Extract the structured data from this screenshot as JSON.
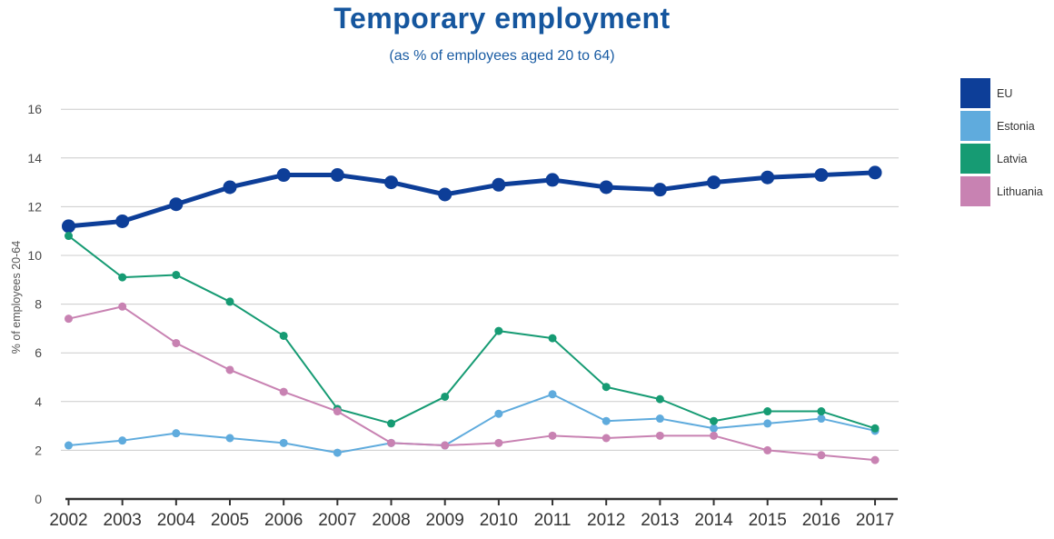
{
  "header": {
    "title": "Temporary employment",
    "subtitle": "(as % of employees aged 20 to 64)"
  },
  "chart_data": {
    "type": "line",
    "title": "Temporary employment",
    "subtitle": "(as % of employees aged 20 to 64)",
    "xlabel": "",
    "ylabel": "% of employees 20-64",
    "x": [
      2002,
      2003,
      2004,
      2005,
      2006,
      2007,
      2008,
      2009,
      2010,
      2011,
      2012,
      2013,
      2014,
      2015,
      2016,
      2017
    ],
    "series": [
      {
        "name": "EU",
        "color": "#0d3e98",
        "emphasized": true,
        "values": [
          11.2,
          11.4,
          12.1,
          12.8,
          13.3,
          13.3,
          13.0,
          12.5,
          12.9,
          13.1,
          12.8,
          12.7,
          13.0,
          13.2,
          13.3,
          13.4
        ]
      },
      {
        "name": "Estonia",
        "color": "#5fabdd",
        "emphasized": false,
        "values": [
          2.2,
          2.4,
          2.7,
          2.5,
          2.3,
          1.9,
          2.3,
          2.2,
          3.5,
          4.3,
          3.2,
          3.3,
          2.9,
          3.1,
          3.3,
          2.8
        ]
      },
      {
        "name": "Latvia",
        "color": "#169b73",
        "emphasized": false,
        "values": [
          10.8,
          9.1,
          9.2,
          8.1,
          6.7,
          3.7,
          3.1,
          4.2,
          6.9,
          6.6,
          4.6,
          4.1,
          3.2,
          3.6,
          3.6,
          2.9
        ]
      },
      {
        "name": "Lithuania",
        "color": "#c882b2",
        "emphasized": false,
        "values": [
          7.4,
          7.9,
          6.4,
          5.3,
          4.4,
          3.6,
          2.3,
          2.2,
          2.3,
          2.6,
          2.5,
          2.6,
          2.6,
          2.0,
          1.8,
          1.6
        ]
      }
    ],
    "ylim": [
      0,
      16
    ],
    "y_ticks": [
      0,
      2,
      4,
      6,
      8,
      10,
      12,
      14,
      16
    ],
    "grid": "horizontal",
    "legend_position": "right"
  },
  "colors": {
    "title": "#15569e",
    "subtitle": "#1a5ca3",
    "gridline": "#cccccc",
    "axis": "#333333",
    "eu": "#0d3e98",
    "estonia": "#5fabdd",
    "latvia": "#169b73",
    "lithuania": "#c882b2"
  }
}
